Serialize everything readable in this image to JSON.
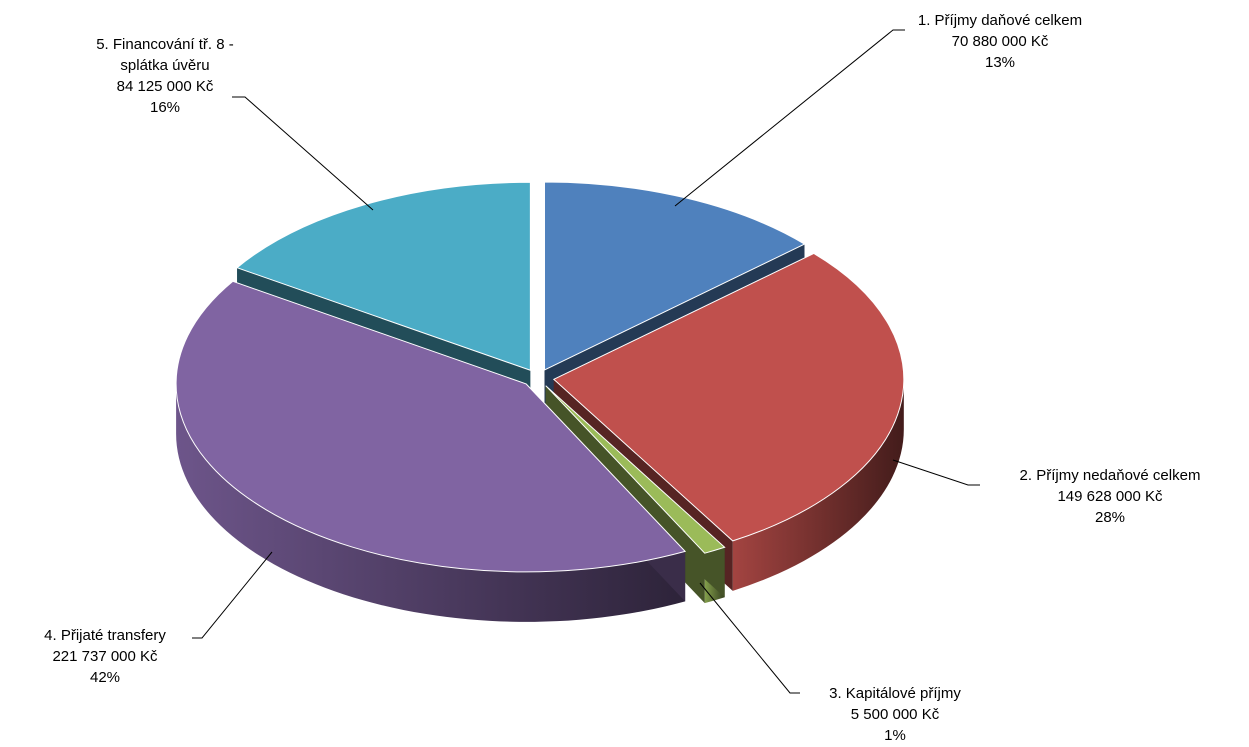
{
  "chart_data": {
    "type": "pie",
    "style": "3d-exploded",
    "slices": [
      {
        "name": "1. Příjmy daňové celkem",
        "value_text": "70 880 000 Kč",
        "value": 70880000,
        "percent": "13%",
        "color": "#4f81bd"
      },
      {
        "name": "2. Příjmy nedaňové celkem",
        "value_text": "149 628 000 Kč",
        "value": 149628000,
        "percent": "28%",
        "color": "#c0504d"
      },
      {
        "name": "3. Kapitálové příjmy",
        "value_text": "5 500 000 Kč",
        "value": 5500000,
        "percent": "1%",
        "color": "#9bbb59"
      },
      {
        "name": "4. Přijaté transfery",
        "value_text": "221 737 000 Kč",
        "value": 221737000,
        "percent": "42%",
        "color": "#8064a2"
      },
      {
        "name_lines": [
          "5. Financování tř. 8 -",
          "splátka úvěru"
        ],
        "value_text": "84 125 000 Kč",
        "value": 84125000,
        "percent": "16%",
        "color": "#4bacc6"
      }
    ]
  }
}
